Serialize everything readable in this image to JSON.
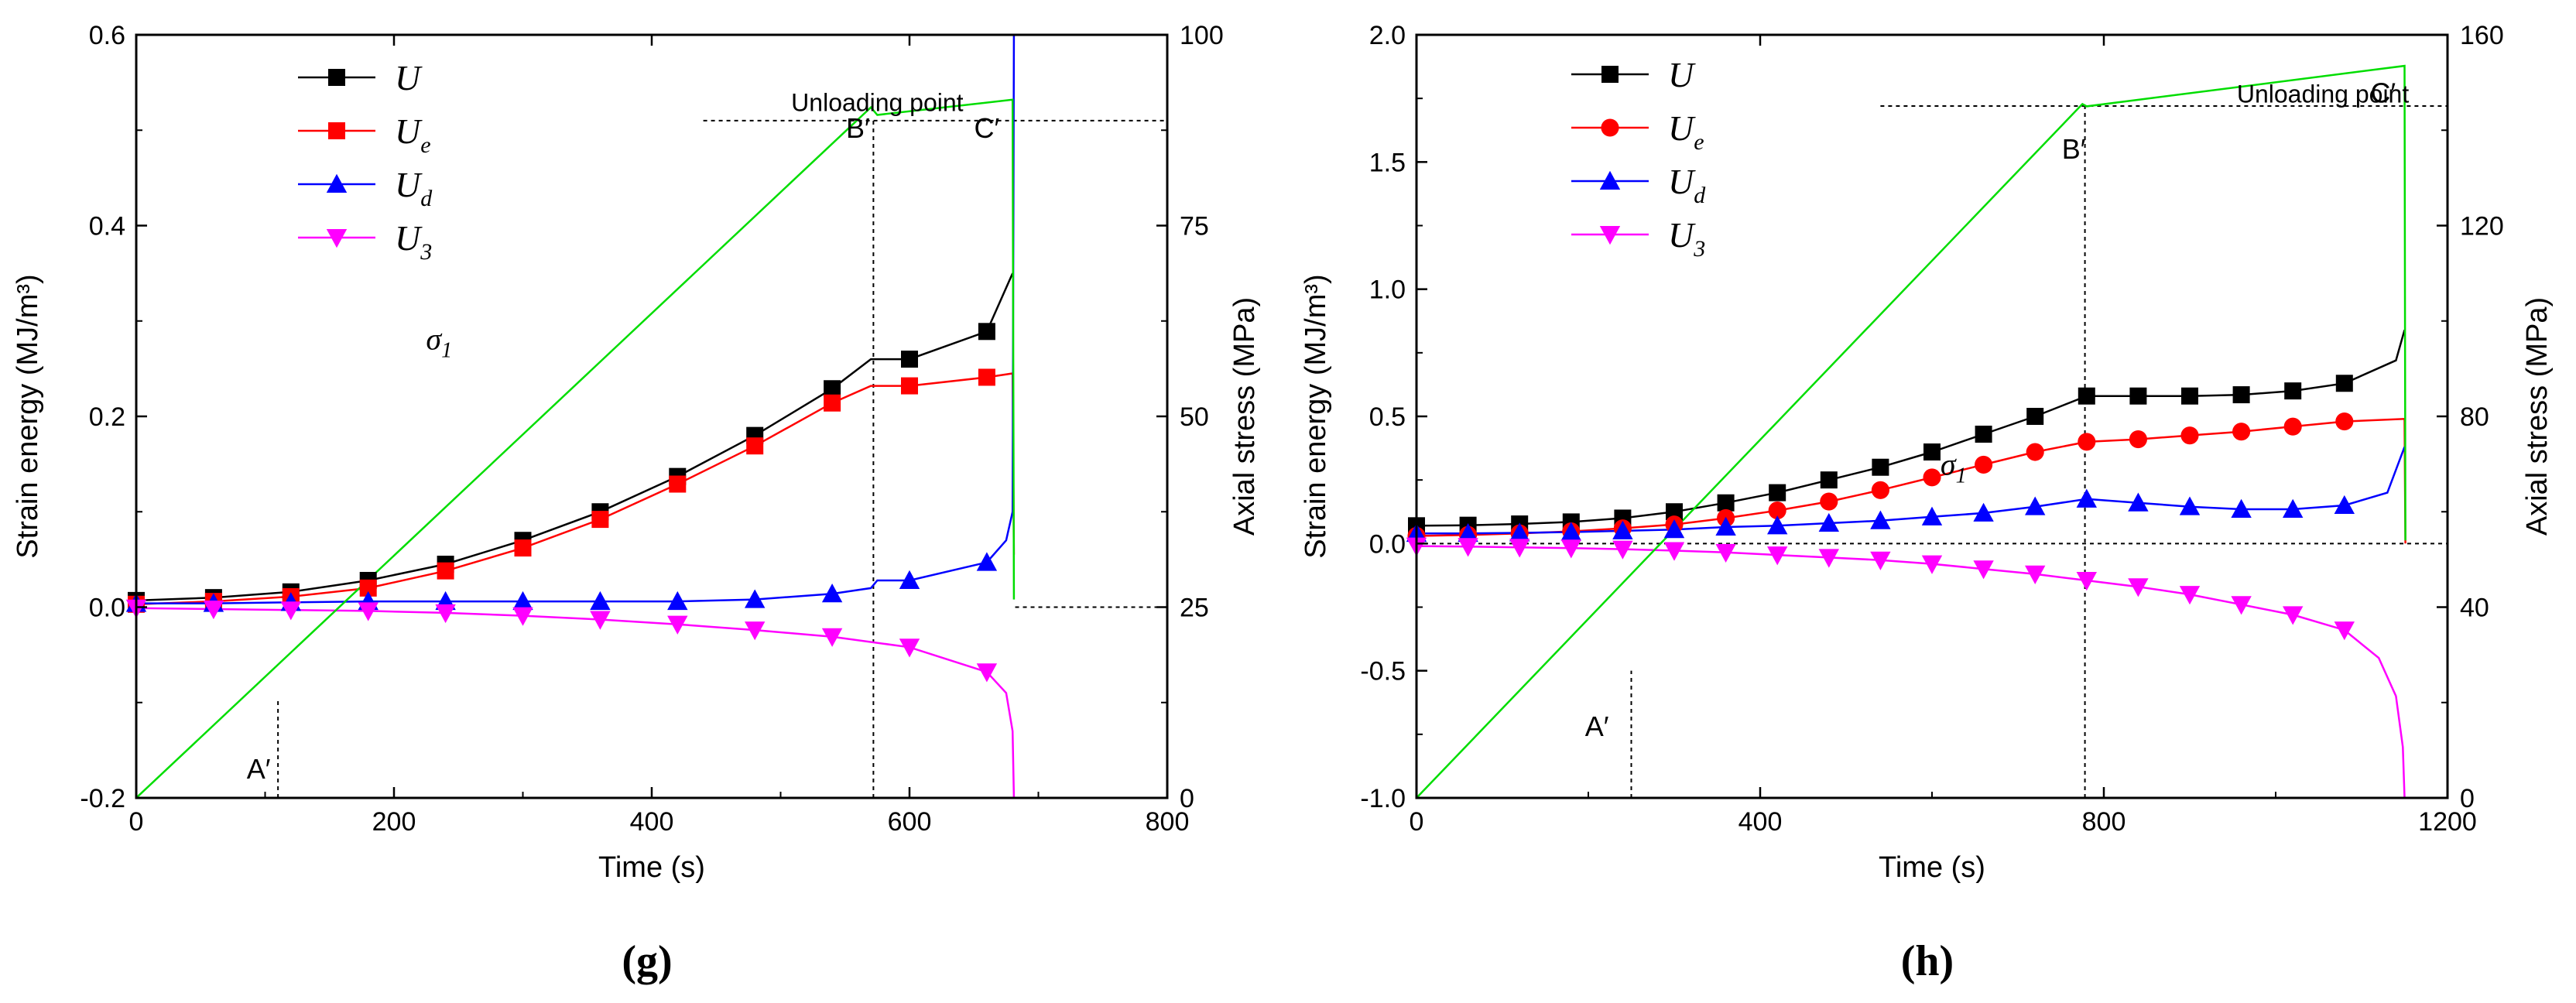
{
  "chart_data": [
    {
      "panel": "(g)",
      "type": "line",
      "xlabel": "Time (s)",
      "ylabel": "Strain energy (MJ/m³)",
      "y2label": "Axial stress (MPa)",
      "xlim": [
        0,
        800
      ],
      "ylim": [
        -0.2,
        0.6
      ],
      "y2lim": [
        0,
        100
      ],
      "xticks": [
        0,
        200,
        400,
        600,
        800
      ],
      "yticks": [
        -0.2,
        0.0,
        0.2,
        0.4,
        0.6
      ],
      "ytick_labels": [
        "-0.2",
        "0.0",
        "0.2",
        "0.4",
        "0.6"
      ],
      "y2ticks": [
        0,
        25,
        50,
        75,
        100
      ],
      "legend": [
        {
          "base": "U",
          "sub": "",
          "color": "#000000",
          "marker": "square"
        },
        {
          "base": "U",
          "sub": "e",
          "color": "#ff0000",
          "marker": "square"
        },
        {
          "base": "U",
          "sub": "d",
          "color": "#0000ff",
          "marker": "triangle-up"
        },
        {
          "base": "U",
          "sub": "3",
          "color": "#ff00ff",
          "marker": "triangle-down"
        }
      ],
      "legend_position": "top-left",
      "series": [
        {
          "name": "U",
          "color": "#000000",
          "marker": "square",
          "x": [
            0,
            60,
            120,
            180,
            240,
            300,
            360,
            420,
            480,
            540,
            570,
            600,
            660,
            680
          ],
          "y": [
            0.007,
            0.01,
            0.016,
            0.028,
            0.045,
            0.07,
            0.1,
            0.137,
            0.18,
            0.229,
            0.26,
            0.26,
            0.289,
            0.35
          ],
          "markers": [
            0,
            60,
            120,
            180,
            240,
            300,
            360,
            420,
            480,
            540,
            600,
            660
          ]
        },
        {
          "name": "Ue",
          "color": "#ff0000",
          "marker": "square",
          "x": [
            0,
            60,
            120,
            180,
            240,
            300,
            360,
            420,
            480,
            540,
            570,
            600,
            660,
            680,
            681
          ],
          "y": [
            0.003,
            0.006,
            0.011,
            0.02,
            0.038,
            0.062,
            0.092,
            0.129,
            0.169,
            0.214,
            0.232,
            0.232,
            0.241,
            0.245,
            0.055
          ],
          "markers": [
            0,
            60,
            120,
            180,
            240,
            300,
            360,
            420,
            480,
            540,
            600,
            660
          ]
        },
        {
          "name": "Ud",
          "color": "#0000ff",
          "marker": "triangle-up",
          "x": [
            0,
            60,
            120,
            180,
            240,
            300,
            360,
            420,
            480,
            540,
            570,
            575,
            600,
            660,
            675,
            680,
            681
          ],
          "y": [
            0.004,
            0.004,
            0.005,
            0.006,
            0.006,
            0.006,
            0.006,
            0.006,
            0.008,
            0.014,
            0.02,
            0.028,
            0.028,
            0.047,
            0.07,
            0.1,
            0.6
          ],
          "markers": [
            0,
            60,
            120,
            180,
            240,
            300,
            360,
            420,
            480,
            540,
            600,
            660
          ]
        },
        {
          "name": "U3",
          "color": "#ff00ff",
          "marker": "triangle-down",
          "x": [
            0,
            60,
            120,
            180,
            240,
            300,
            360,
            420,
            480,
            540,
            600,
            660,
            675,
            680,
            681
          ],
          "y": [
            -0.001,
            -0.002,
            -0.003,
            -0.004,
            -0.006,
            -0.009,
            -0.013,
            -0.018,
            -0.024,
            -0.031,
            -0.042,
            -0.068,
            -0.09,
            -0.13,
            -0.2
          ],
          "markers": [
            0,
            60,
            120,
            180,
            240,
            300,
            360,
            420,
            480,
            540,
            600,
            660
          ]
        },
        {
          "name": "σ1",
          "color": "#00dd00",
          "marker": "none",
          "axis": "right",
          "x": [
            0,
            570,
            575,
            680,
            681
          ],
          "y": [
            0,
            90.5,
            89.5,
            91.5,
            26
          ]
        }
      ],
      "sigma_label": {
        "base": "σ",
        "sub": "1",
        "x": 235,
        "y": 0.27
      },
      "annotations": [
        {
          "text": "Unloading point",
          "x": 575,
          "y": 0.53
        },
        {
          "text": "A",
          "x": 95,
          "y": -0.17
        },
        {
          "text": "B",
          "x": 560,
          "y": 0.502
        },
        {
          "text": "C",
          "x": 660,
          "y": 0.502
        }
      ],
      "guide_lines": [
        {
          "x1": 110,
          "y1": -0.2,
          "x2": 110,
          "y2": -0.095
        },
        {
          "x1": 572,
          "y1": -0.2,
          "x2": 572,
          "y2": 0.51
        },
        {
          "x1": 440,
          "y1": 0.51,
          "x2": 800,
          "y2": 0.51
        },
        {
          "x1": 682,
          "y1": 0.0,
          "x2": 800,
          "y2": 0.0
        }
      ],
      "panel_label": "(g)"
    },
    {
      "panel": "(h)",
      "type": "line",
      "xlabel": "Time (s)",
      "ylabel": "Strain energy (MJ/m³)",
      "y2label": "Axial stress (MPa)",
      "xlim": [
        0,
        1200
      ],
      "ylim": [
        -1.0,
        2.0
      ],
      "y2lim": [
        0,
        160
      ],
      "xticks": [
        0,
        400,
        800,
        1200
      ],
      "yticks": [
        -1.0,
        -0.5,
        0.0,
        0.5,
        1.0,
        1.5,
        2.0
      ],
      "ytick_labels": [
        "-1.0",
        "-0.5",
        "0.0",
        "0.5",
        "1.0",
        "1.5",
        "2.0"
      ],
      "y2ticks": [
        0,
        40,
        80,
        120,
        160
      ],
      "legend": [
        {
          "base": "U",
          "sub": "",
          "color": "#000000",
          "marker": "square"
        },
        {
          "base": "U",
          "sub": "e",
          "color": "#ff0000",
          "marker": "circle"
        },
        {
          "base": "U",
          "sub": "d",
          "color": "#0000ff",
          "marker": "triangle-up"
        },
        {
          "base": "U",
          "sub": "3",
          "color": "#ff00ff",
          "marker": "triangle-down"
        }
      ],
      "legend_position": "top-left",
      "series": [
        {
          "name": "U",
          "color": "#000000",
          "marker": "square",
          "x": [
            0,
            60,
            120,
            180,
            240,
            300,
            360,
            420,
            480,
            540,
            600,
            660,
            720,
            780,
            840,
            900,
            960,
            1020,
            1080,
            1140,
            1150
          ],
          "y": [
            0.07,
            0.072,
            0.077,
            0.085,
            0.1,
            0.125,
            0.16,
            0.2,
            0.25,
            0.3,
            0.36,
            0.43,
            0.5,
            0.58,
            0.58,
            0.58,
            0.585,
            0.6,
            0.63,
            0.72,
            0.84
          ],
          "markers": [
            0,
            60,
            120,
            180,
            240,
            300,
            360,
            420,
            480,
            540,
            600,
            660,
            720,
            780,
            840,
            900,
            960,
            1020,
            1080
          ]
        },
        {
          "name": "Ue",
          "color": "#ff0000",
          "marker": "circle",
          "x": [
            0,
            60,
            120,
            180,
            240,
            300,
            360,
            420,
            480,
            540,
            600,
            660,
            720,
            780,
            840,
            900,
            960,
            1020,
            1080,
            1150,
            1151
          ],
          "y": [
            0.03,
            0.034,
            0.04,
            0.048,
            0.06,
            0.075,
            0.1,
            0.13,
            0.165,
            0.21,
            0.26,
            0.31,
            0.36,
            0.4,
            0.41,
            0.425,
            0.44,
            0.46,
            0.48,
            0.49,
            0.0
          ],
          "markers": [
            0,
            60,
            120,
            180,
            240,
            300,
            360,
            420,
            480,
            540,
            600,
            660,
            720,
            780,
            840,
            900,
            960,
            1020,
            1080
          ]
        },
        {
          "name": "Ud",
          "color": "#0000ff",
          "marker": "triangle-up",
          "x": [
            0,
            60,
            120,
            180,
            240,
            300,
            360,
            420,
            480,
            540,
            600,
            660,
            720,
            780,
            840,
            900,
            960,
            1020,
            1080,
            1130,
            1150
          ],
          "y": [
            0.04,
            0.04,
            0.042,
            0.045,
            0.05,
            0.055,
            0.065,
            0.07,
            0.08,
            0.09,
            0.105,
            0.12,
            0.145,
            0.175,
            0.16,
            0.145,
            0.135,
            0.135,
            0.15,
            0.2,
            0.38
          ],
          "markers": [
            0,
            60,
            120,
            180,
            240,
            300,
            360,
            420,
            480,
            540,
            600,
            660,
            720,
            780,
            840,
            900,
            960,
            1020,
            1080
          ]
        },
        {
          "name": "U3",
          "color": "#ff00ff",
          "marker": "triangle-down",
          "x": [
            0,
            60,
            120,
            180,
            240,
            300,
            360,
            420,
            480,
            540,
            600,
            660,
            720,
            780,
            840,
            900,
            960,
            1020,
            1080,
            1120,
            1140,
            1148,
            1150
          ],
          "y": [
            -0.01,
            -0.012,
            -0.015,
            -0.018,
            -0.022,
            -0.028,
            -0.035,
            -0.045,
            -0.055,
            -0.065,
            -0.08,
            -0.1,
            -0.12,
            -0.145,
            -0.17,
            -0.2,
            -0.24,
            -0.28,
            -0.34,
            -0.45,
            -0.6,
            -0.8,
            -1.0
          ],
          "markers": [
            0,
            60,
            120,
            180,
            240,
            300,
            360,
            420,
            480,
            540,
            600,
            660,
            720,
            780,
            840,
            900,
            960,
            1020,
            1080
          ]
        },
        {
          "name": "σ1",
          "color": "#00dd00",
          "marker": "none",
          "axis": "right",
          "x": [
            0,
            775,
            780,
            1150,
            1151
          ],
          "y": [
            0,
            145.5,
            145,
            153.5,
            54
          ]
        }
      ],
      "sigma_label": {
        "base": "σ",
        "sub": "1",
        "x": 625,
        "y": 0.27
      },
      "annotations": [
        {
          "text": "Unloading point",
          "x": 1055,
          "y": 1.77
        },
        {
          "text": "A",
          "x": 210,
          "y": -0.72
        },
        {
          "text": "B",
          "x": 765,
          "y": 1.55
        },
        {
          "text": "C",
          "x": 1125,
          "y": 1.77
        }
      ],
      "guide_lines": [
        {
          "x1": 250,
          "y1": -1.0,
          "x2": 250,
          "y2": -0.5
        },
        {
          "x1": 778,
          "y1": -1.0,
          "x2": 778,
          "y2": 1.72
        },
        {
          "x1": 540,
          "y1": 1.72,
          "x2": 1200,
          "y2": 1.72
        },
        {
          "x1": 0,
          "y1": 0.0,
          "x2": 1200,
          "y2": 0.0
        }
      ],
      "panel_label": "(h)"
    }
  ]
}
